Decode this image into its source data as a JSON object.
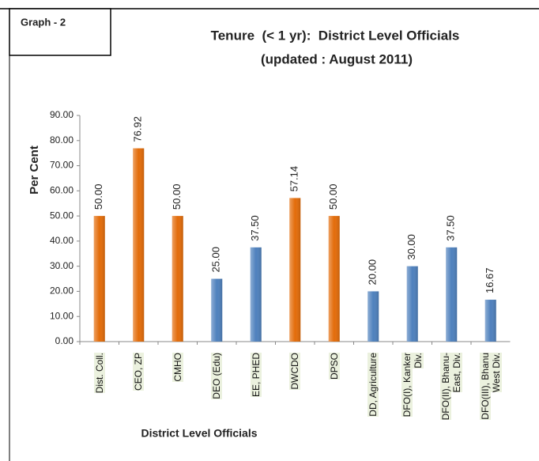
{
  "chart_data": {
    "type": "bar",
    "badge": "Graph - 2",
    "title": "Tenure  (< 1 yr):  District Level Officials",
    "subtitle": "(updated : August 2011)",
    "y_label": "Per Cent",
    "x_label": "District Level Officials",
    "categories": [
      "Dist. Coll.",
      "CEO, ZP",
      "CMHO",
      "DEO (Edu)",
      "EE, PHED",
      "DWCDO",
      "DPSO",
      "DD, Agriculture",
      "DFO(I), Kanker Div.",
      "DFO(II), Bhanu-East, Div.",
      "DFO(III), Bhanu West Div."
    ],
    "values": [
      50,
      76.92,
      50,
      25,
      37.5,
      57.14,
      50,
      20,
      30,
      37.5,
      16.67
    ],
    "value_labels": [
      "50.00",
      "76.92",
      "50.00",
      "25.00",
      "37.50",
      "57.14",
      "50.00",
      "20.00",
      "30.00",
      "37.50",
      "16.67"
    ],
    "colors": [
      "#e36c0a",
      "#e36c0a",
      "#e36c0a",
      "#4f81bd",
      "#4f81bd",
      "#e36c0a",
      "#e36c0a",
      "#4f81bd",
      "#4f81bd",
      "#4f81bd",
      "#4f81bd"
    ],
    "ylim": [
      0,
      90
    ],
    "yticks": [
      {
        "value": 0,
        "label": "0.00"
      },
      {
        "value": 10,
        "label": "10.00"
      },
      {
        "value": 20,
        "label": "20.00"
      },
      {
        "value": 30,
        "label": "30.00"
      },
      {
        "value": 40,
        "label": "40.00"
      },
      {
        "value": 50,
        "label": "50.00"
      },
      {
        "value": 60,
        "label": "60.00"
      },
      {
        "value": 70,
        "label": "70.00"
      },
      {
        "value": 80,
        "label": "80.00"
      },
      {
        "value": 90,
        "label": "90.00"
      }
    ],
    "grid": false
  }
}
